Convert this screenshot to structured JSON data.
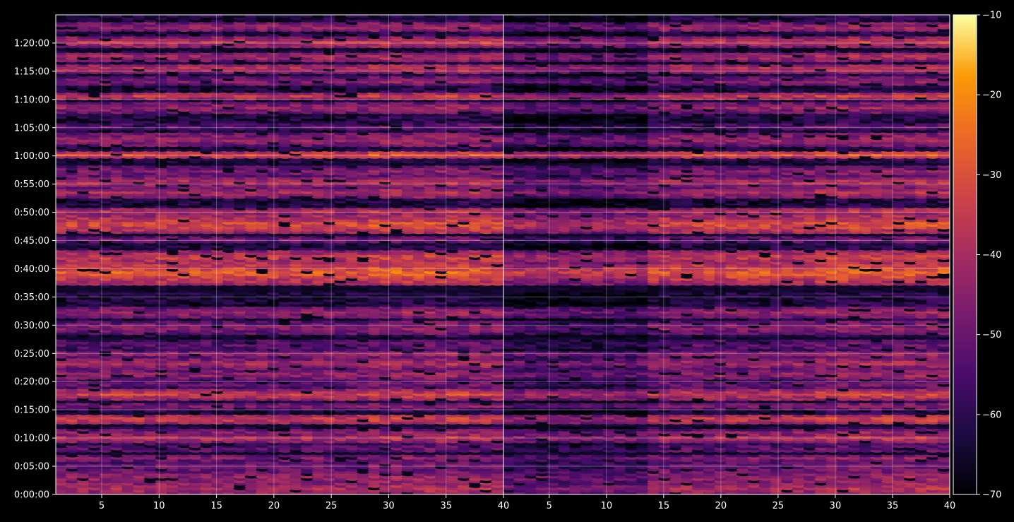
{
  "chart_data": {
    "type": "heatmap",
    "panels": [
      {
        "xlim": [
          1,
          40
        ],
        "xticks": [
          5,
          10,
          15,
          20,
          25,
          30,
          35,
          40
        ],
        "ylim_seconds": [
          0,
          5100
        ],
        "yticks": [
          {
            "value": 0,
            "label": "0:00:00"
          },
          {
            "value": 300,
            "label": "0:05:00"
          },
          {
            "value": 600,
            "label": "0:10:00"
          },
          {
            "value": 900,
            "label": "0:15:00"
          },
          {
            "value": 1200,
            "label": "0:20:00"
          },
          {
            "value": 1500,
            "label": "0:25:00"
          },
          {
            "value": 1800,
            "label": "0:30:00"
          },
          {
            "value": 2100,
            "label": "0:35:00"
          },
          {
            "value": 2400,
            "label": "0:40:00"
          },
          {
            "value": 2700,
            "label": "0:45:00"
          },
          {
            "value": 3000,
            "label": "0:50:00"
          },
          {
            "value": 3300,
            "label": "0:55:00"
          },
          {
            "value": 3600,
            "label": "1:00:00"
          },
          {
            "value": 3900,
            "label": "1:05:00"
          },
          {
            "value": 4200,
            "label": "1:10:00"
          },
          {
            "value": 4500,
            "label": "1:15:00"
          },
          {
            "value": 4800,
            "label": "1:20:00"
          }
        ],
        "grid": true
      },
      {
        "xlim": [
          1,
          40
        ],
        "xticks": [
          5,
          10,
          15,
          20,
          25,
          30,
          35,
          40
        ],
        "ylim_seconds": [
          0,
          5100
        ],
        "grid": true
      }
    ],
    "colorbar": {
      "colormap": "inferno",
      "range": [
        -70,
        -10
      ],
      "ticks": [
        -10,
        -20,
        -30,
        -40,
        -50,
        -60,
        -70
      ],
      "tick_labels": [
        "−10",
        "−20",
        "−30",
        "−40",
        "−50",
        "−60",
        "−70"
      ]
    },
    "background": "#000000"
  }
}
